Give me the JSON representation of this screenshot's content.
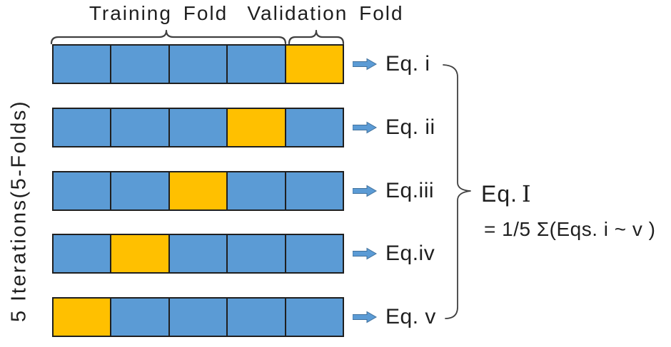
{
  "header": {
    "training_label": "Training Fold",
    "validation_label": "Validation Fold"
  },
  "side_label": "5 Iterations(5-Folds)",
  "grid": {
    "folds_per_row": 5,
    "iterations": 5,
    "rows": [
      {
        "cells": [
          "training",
          "training",
          "training",
          "training",
          "validation"
        ],
        "eq_label": "Eq. i"
      },
      {
        "cells": [
          "training",
          "training",
          "training",
          "validation",
          "training"
        ],
        "eq_label": "Eq. ii"
      },
      {
        "cells": [
          "training",
          "training",
          "validation",
          "training",
          "training"
        ],
        "eq_label": "Eq.iii"
      },
      {
        "cells": [
          "training",
          "validation",
          "training",
          "training",
          "training"
        ],
        "eq_label": "Eq.iv"
      },
      {
        "cells": [
          "validation",
          "training",
          "training",
          "training",
          "training"
        ],
        "eq_label": "Eq. v"
      }
    ]
  },
  "summary": {
    "label_prefix": "Eq.",
    "label_numeral": "I",
    "formula": "= 1/5 Σ(Eqs. i ~ v )"
  },
  "icons": {
    "row_arrow": "right-arrow-icon"
  },
  "colors": {
    "training_fold": "#5B9BD5",
    "validation_fold": "#FFC000",
    "cell_border": "#1f1f1f",
    "arrow_fill": "#5B9BD5",
    "arrow_stroke": "#41719C",
    "brace": "#404040",
    "text": "#1f1f1f",
    "background": "#ffffff"
  }
}
